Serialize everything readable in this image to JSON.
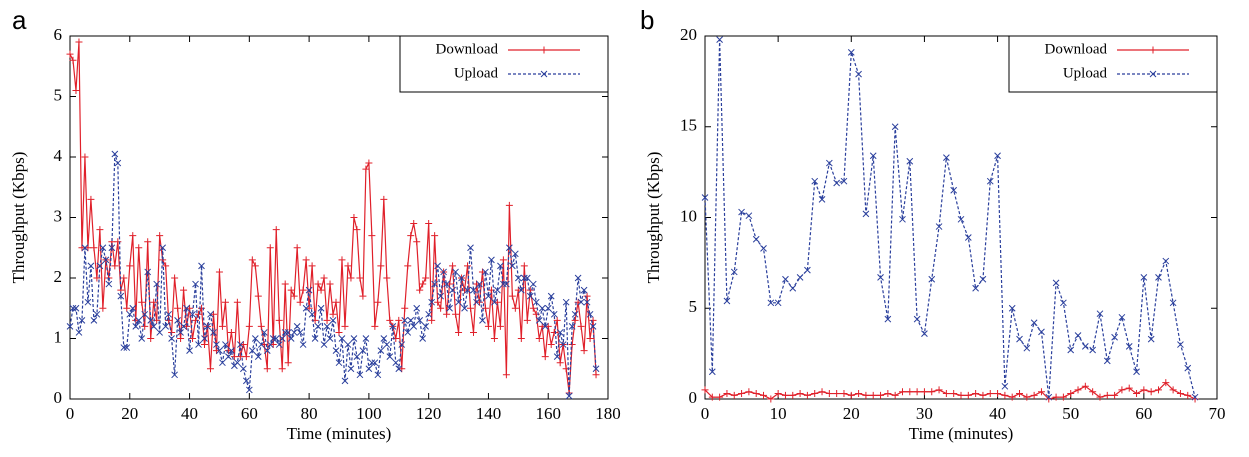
{
  "chart_data": [
    {
      "type": "line",
      "panel_label": "a",
      "xlabel": "Time (minutes)",
      "ylabel": "Throughput (Kbps)",
      "xlim": [
        0,
        180
      ],
      "ylim": [
        0,
        6
      ],
      "xticks": [
        0,
        20,
        40,
        60,
        80,
        100,
        120,
        140,
        160,
        180
      ],
      "yticks": [
        0,
        1,
        2,
        3,
        4,
        5,
        6
      ],
      "legend": "upper right",
      "x": [
        0,
        1,
        2,
        3,
        4,
        5,
        6,
        7,
        8,
        9,
        10,
        11,
        12,
        13,
        14,
        15,
        16,
        17,
        18,
        19,
        20,
        21,
        22,
        23,
        24,
        25,
        26,
        27,
        28,
        29,
        30,
        31,
        32,
        33,
        34,
        35,
        36,
        37,
        38,
        39,
        40,
        41,
        42,
        43,
        44,
        45,
        46,
        47,
        48,
        49,
        50,
        51,
        52,
        53,
        54,
        55,
        56,
        57,
        58,
        59,
        60,
        61,
        62,
        63,
        64,
        65,
        66,
        67,
        68,
        69,
        70,
        71,
        72,
        73,
        74,
        75,
        76,
        77,
        78,
        79,
        80,
        81,
        82,
        83,
        84,
        85,
        86,
        87,
        88,
        89,
        90,
        91,
        92,
        93,
        94,
        95,
        96,
        97,
        98,
        99,
        100,
        101,
        102,
        103,
        104,
        105,
        106,
        107,
        108,
        109,
        110,
        111,
        112,
        113,
        114,
        115,
        116,
        117,
        118,
        119,
        120,
        121,
        122,
        123,
        124,
        125,
        126,
        127,
        128,
        129,
        130,
        131,
        132,
        133,
        134,
        135,
        136,
        137,
        138,
        139,
        140,
        141,
        142,
        143,
        144,
        145,
        146,
        147,
        148,
        149,
        150,
        151,
        152,
        153,
        154,
        155,
        156,
        157,
        158,
        159,
        160,
        161,
        162,
        163,
        164,
        165,
        166,
        167,
        168,
        169,
        170,
        171,
        172,
        173,
        174,
        175,
        176
      ],
      "series": [
        {
          "name": "Download",
          "color": "#e0202a",
          "marker": "plus",
          "dashed": false,
          "values": [
            5.7,
            5.6,
            5.1,
            5.9,
            2.5,
            4.0,
            2.5,
            3.3,
            2.5,
            2.0,
            2.8,
            1.5,
            2.3,
            2.0,
            2.6,
            2.2,
            2.6,
            1.8,
            2.0,
            1.5,
            2.2,
            2.7,
            1.3,
            2.5,
            1.6,
            1.2,
            2.6,
            1.0,
            1.6,
            1.3,
            2.7,
            2.3,
            2.2,
            1.3,
            1.1,
            2.0,
            1.5,
            1.0,
            1.8,
            1.2,
            1.5,
            1.0,
            1.3,
            1.4,
            1.5,
            0.9,
            1.2,
            0.5,
            1.4,
            0.8,
            2.1,
            1.2,
            1.6,
            0.8,
            1.1,
            0.7,
            1.6,
            0.7,
            0.9,
            0.7,
            1.2,
            2.3,
            2.2,
            1.7,
            1.2,
            0.9,
            0.5,
            2.5,
            0.9,
            2.8,
            1.3,
            0.5,
            1.9,
            0.6,
            1.8,
            1.7,
            2.5,
            1.6,
            1.8,
            2.3,
            1.5,
            2.2,
            1.3,
            1.9,
            1.8,
            2.0,
            1.3,
            1.9,
            1.4,
            1.6,
            1.1,
            2.3,
            1.2,
            2.2,
            2.0,
            3.0,
            2.8,
            2.0,
            1.7,
            3.8,
            3.9,
            2.7,
            1.2,
            1.6,
            2.2,
            3.3,
            2.0,
            1.3,
            1.2,
            1.0,
            1.3,
            0.5,
            1.5,
            2.2,
            2.7,
            2.9,
            2.6,
            1.8,
            1.9,
            2.0,
            2.9,
            1.3,
            2.7,
            1.6,
            1.5,
            2.1,
            1.4,
            1.9,
            2.2,
            1.4,
            1.1,
            2.0,
            1.8,
            2.2,
            1.5,
            1.1,
            1.9,
            1.6,
            2.1,
            1.5,
            1.2,
            1.8,
            1.0,
            1.6,
            1.2,
            2.3,
            0.4,
            3.2,
            1.7,
            1.5,
            1.8,
            1.0,
            2.2,
            1.3,
            1.8,
            1.5,
            1.4,
            1.0,
            1.2,
            0.7,
            1.2,
            0.9,
            1.1,
            1.3,
            0.6,
            0.9,
            0.5,
            0.1,
            0.9,
            1.3,
            1.6,
            1.2,
            0.8,
            1.7,
            1.0,
            1.3,
            0.4
          ]
        },
        {
          "name": "Upload",
          "color": "#2a3f9c",
          "marker": "cross",
          "dashed": true,
          "values": [
            1.2,
            1.5,
            1.5,
            1.1,
            1.3,
            2.5,
            1.6,
            2.2,
            1.3,
            1.4,
            2.2,
            2.5,
            2.3,
            1.9,
            2.5,
            4.05,
            3.9,
            1.7,
            0.85,
            0.85,
            1.4,
            1.5,
            1.2,
            1.3,
            1.0,
            1.4,
            2.1,
            1.3,
            1.2,
            1.9,
            1.1,
            2.5,
            1.2,
            1.4,
            1.0,
            0.4,
            1.3,
            1.1,
            1.2,
            1.5,
            0.8,
            1.4,
            1.9,
            0.9,
            2.2,
            1.0,
            1.2,
            1.4,
            1.1,
            0.9,
            0.8,
            0.6,
            0.9,
            0.7,
            0.8,
            0.55,
            0.6,
            0.9,
            0.5,
            0.3,
            0.15,
            0.8,
            1.0,
            0.7,
            0.9,
            1.1,
            0.8,
            0.9,
            1.0,
            1.0,
            0.9,
            1.0,
            1.1,
            1.1,
            1.0,
            1.1,
            1.2,
            1.1,
            0.9,
            1.5,
            1.8,
            1.4,
            1.0,
            1.2,
            1.5,
            0.9,
            1.2,
            1.0,
            1.3,
            0.8,
            0.6,
            1.0,
            0.3,
            0.9,
            0.5,
            1.0,
            0.7,
            0.4,
            0.8,
            1.0,
            0.5,
            0.6,
            0.6,
            0.4,
            0.8,
            1.0,
            0.9,
            0.7,
            1.2,
            0.6,
            0.5,
            0.9,
            1.3,
            1.1,
            1.3,
            1.2,
            1.5,
            1.3,
            1.0,
            1.2,
            1.4,
            1.6,
            1.9,
            2.2,
            1.7,
            2.1,
            1.9,
            1.5,
            1.8,
            2.1,
            1.6,
            2.0,
            1.5,
            1.8,
            2.5,
            1.8,
            1.6,
            1.9,
            1.3,
            2.1,
            1.7,
            2.3,
            1.6,
            1.8,
            2.2,
            1.9,
            1.9,
            2.5,
            2.2,
            2.4,
            2.0,
            1.8,
            2.0,
            2.0,
            1.7,
            1.9,
            1.6,
            1.3,
            1.5,
            1.2,
            1.5,
            1.7,
            1.4,
            0.7,
            1.1,
            0.9,
            1.6,
            0.05,
            1.2,
            1.4,
            2.0,
            1.6,
            1.8,
            1.6,
            1.4,
            1.2,
            0.5
          ]
        }
      ]
    },
    {
      "type": "line",
      "panel_label": "b",
      "xlabel": "Time (minutes)",
      "ylabel": "Throughput (Kbps)",
      "xlim": [
        0,
        70
      ],
      "ylim": [
        0,
        20
      ],
      "xticks": [
        0,
        10,
        20,
        30,
        40,
        50,
        60,
        70
      ],
      "yticks": [
        0,
        5,
        10,
        15,
        20
      ],
      "legend": "upper right",
      "x": [
        0,
        1,
        2,
        3,
        4,
        5,
        6,
        7,
        8,
        9,
        10,
        11,
        12,
        13,
        14,
        15,
        16,
        17,
        18,
        19,
        20,
        21,
        22,
        23,
        24,
        25,
        26,
        27,
        28,
        29,
        30,
        31,
        32,
        33,
        34,
        35,
        36,
        37,
        38,
        39,
        40,
        41,
        42,
        43,
        44,
        45,
        46,
        47,
        48,
        49,
        50,
        51,
        52,
        53,
        54,
        55,
        56,
        57,
        58,
        59,
        60,
        61,
        62,
        63,
        64,
        65,
        66,
        67
      ],
      "series": [
        {
          "name": "Download",
          "color": "#e0202a",
          "marker": "plus",
          "dashed": false,
          "values": [
            0.5,
            0.1,
            0.1,
            0.3,
            0.2,
            0.3,
            0.4,
            0.3,
            0.2,
            0.0,
            0.3,
            0.2,
            0.2,
            0.3,
            0.2,
            0.3,
            0.4,
            0.3,
            0.3,
            0.3,
            0.2,
            0.3,
            0.2,
            0.2,
            0.2,
            0.3,
            0.2,
            0.4,
            0.4,
            0.4,
            0.4,
            0.4,
            0.5,
            0.3,
            0.3,
            0.2,
            0.2,
            0.3,
            0.2,
            0.3,
            0.3,
            0.2,
            0.1,
            0.3,
            0.1,
            0.2,
            0.4,
            0.0,
            0.1,
            0.1,
            0.3,
            0.5,
            0.7,
            0.4,
            0.1,
            0.2,
            0.2,
            0.5,
            0.6,
            0.3,
            0.5,
            0.4,
            0.5,
            0.9,
            0.5,
            0.3,
            0.2,
            0.0
          ]
        },
        {
          "name": "Upload",
          "color": "#2a3f9c",
          "marker": "cross",
          "dashed": true,
          "values": [
            11.1,
            1.5,
            19.8,
            5.4,
            7.0,
            10.3,
            10.1,
            8.8,
            8.3,
            5.3,
            5.3,
            6.6,
            6.1,
            6.7,
            7.1,
            12.0,
            11.0,
            13.0,
            11.9,
            12.0,
            19.1,
            17.9,
            10.2,
            13.4,
            6.7,
            4.4,
            15.0,
            9.9,
            13.1,
            4.4,
            3.6,
            6.6,
            9.5,
            13.3,
            11.5,
            9.9,
            8.9,
            6.1,
            6.6,
            12.0,
            13.4,
            0.7,
            5.0,
            3.3,
            2.8,
            4.2,
            3.7,
            0.1,
            6.4,
            5.3,
            2.7,
            3.5,
            2.9,
            2.7,
            4.7,
            2.1,
            3.4,
            4.5,
            2.9,
            1.5,
            6.7,
            3.3,
            6.7,
            7.6,
            5.3,
            3.0,
            1.7,
            0.1
          ]
        }
      ]
    }
  ]
}
